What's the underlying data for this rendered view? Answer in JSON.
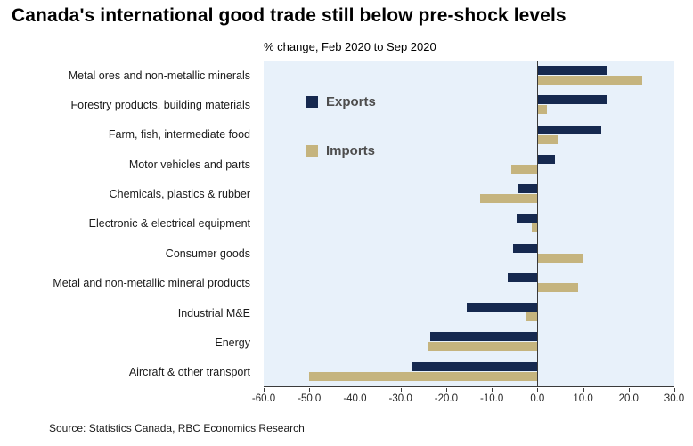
{
  "title": "Canada's international good trade still below pre-shock levels",
  "subtitle": "% change, Feb 2020 to Sep 2020",
  "source": "Source: Statistics Canada, RBC Economics Research",
  "chart_data": {
    "type": "bar",
    "orientation": "horizontal",
    "title": "Canada's international good trade still below pre-shock levels",
    "subtitle": "% change, Feb 2020 to Sep 2020",
    "categories": [
      "Metal ores and non-metallic minerals",
      "Forestry products, building materials",
      "Farm, fish, intermediate food",
      "Motor vehicles and parts",
      "Chemicals, plastics & rubber",
      "Electronic & electrical equipment",
      "Consumer goods",
      "Metal and non-metallic mineral products",
      "Industrial M&E",
      "Energy",
      "Aircraft & other transport"
    ],
    "series": [
      {
        "name": "Exports",
        "color": "#16294f",
        "values": [
          15.2,
          15.2,
          14.0,
          3.8,
          -4.2,
          -4.6,
          -5.3,
          -6.5,
          -15.5,
          -23.5,
          -27.5
        ]
      },
      {
        "name": "Imports",
        "color": "#c5b47e",
        "values": [
          23.0,
          2.0,
          4.5,
          -5.8,
          -12.5,
          -1.2,
          9.8,
          9.0,
          -2.5,
          -23.8,
          -50.0
        ]
      }
    ],
    "xlim": [
      -60,
      30
    ],
    "xticks": [
      -60,
      -50,
      -40,
      -30,
      -20,
      -10,
      0,
      10,
      20,
      30
    ],
    "xtick_labels": [
      "-60.0",
      "-50.0",
      "-40.0",
      "-30.0",
      "-20.0",
      "-10.0",
      "0.0",
      "10.0",
      "20.0",
      "30.0"
    ],
    "legend_position": "inside-top-left",
    "plot_background": "#e8f1fa",
    "grid": false
  }
}
